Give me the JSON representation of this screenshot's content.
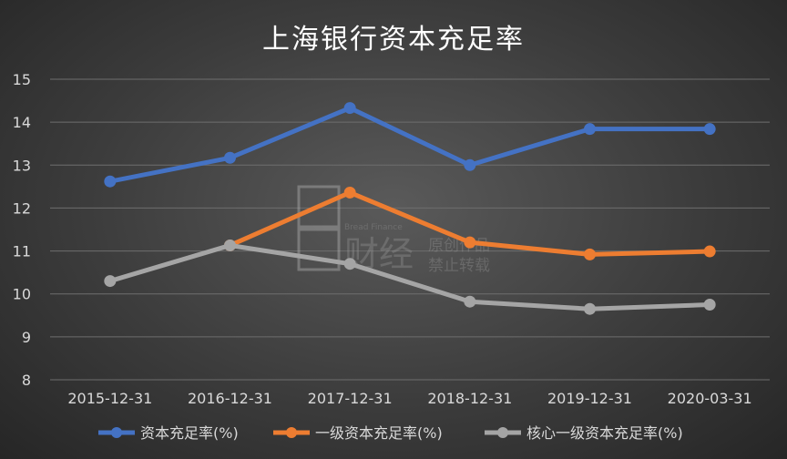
{
  "chart_data": {
    "type": "line",
    "title": "上海银行资本充足率",
    "categories": [
      "2015-12-31",
      "2016-12-31",
      "2017-12-31",
      "2018-12-31",
      "2019-12-31",
      "2020-03-31"
    ],
    "ylim": [
      8,
      15
    ],
    "yticks": [
      8,
      9,
      10,
      11,
      12,
      13,
      14,
      15
    ],
    "grid": true,
    "legend": "bottom",
    "series": [
      {
        "name": "资本充足率(%)",
        "color": "#4472C4",
        "values": [
          12.62,
          13.17,
          14.33,
          13.0,
          13.84,
          13.84
        ]
      },
      {
        "name": "一级资本充足率(%)",
        "color": "#ED7D31",
        "values": [
          null,
          11.13,
          12.36,
          11.2,
          10.92,
          10.99
        ]
      },
      {
        "name": "核心一级资本充足率(%)",
        "color": "#A5A5A5",
        "values": [
          10.3,
          11.13,
          10.7,
          9.82,
          9.65,
          9.75
        ]
      }
    ]
  },
  "watermark": {
    "brand": "财经",
    "english": "Bread Finance",
    "line1": "原创作品",
    "line2": "禁止转载"
  }
}
